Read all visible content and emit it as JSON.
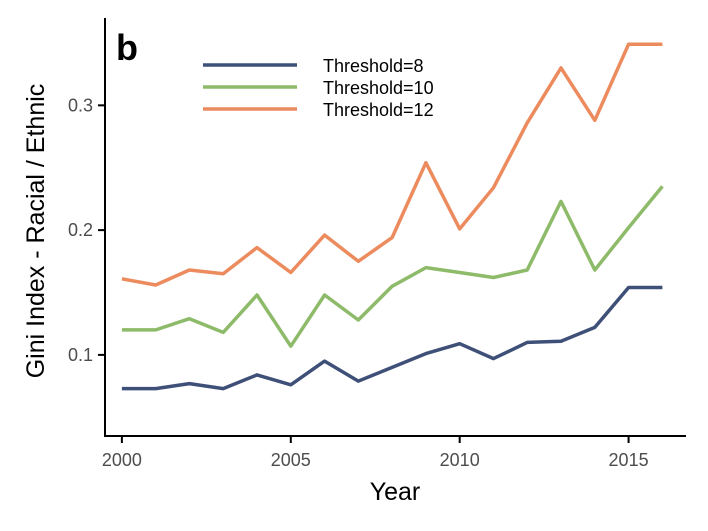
{
  "chart_data": {
    "type": "line",
    "panel_label": "b",
    "xlabel": "Year",
    "ylabel": "Gini Index - Racial / Ethnic",
    "x": [
      2000,
      2001,
      2002,
      2003,
      2004,
      2005,
      2006,
      2007,
      2008,
      2009,
      2010,
      2011,
      2012,
      2013,
      2014,
      2015,
      2016
    ],
    "xlim": [
      1999.5,
      2016.7
    ],
    "ylim": [
      0.035,
      0.37
    ],
    "x_ticks": [
      2000,
      2005,
      2010,
      2015
    ],
    "x_tick_labels": [
      "2000",
      "2005",
      "2010",
      "2015"
    ],
    "y_ticks": [
      0.1,
      0.2,
      0.3
    ],
    "y_tick_labels": [
      "0.1",
      "0.2",
      "0.3"
    ],
    "grid": false,
    "legend_position": "top-center",
    "series": [
      {
        "name": "Threshold=8",
        "color": "#3f5078",
        "values": [
          0.073,
          0.073,
          0.077,
          0.073,
          0.084,
          0.076,
          0.095,
          0.079,
          0.09,
          0.101,
          0.109,
          0.097,
          0.11,
          0.111,
          0.122,
          0.154,
          0.154
        ]
      },
      {
        "name": "Threshold=10",
        "color": "#8dbb69",
        "values": [
          0.12,
          0.12,
          0.129,
          0.118,
          0.148,
          0.107,
          0.148,
          0.128,
          0.155,
          0.17,
          0.166,
          0.162,
          0.168,
          0.223,
          0.168,
          0.202,
          0.235
        ]
      },
      {
        "name": "Threshold=12",
        "color": "#ec8b5e",
        "values": [
          0.161,
          0.156,
          0.168,
          0.165,
          0.186,
          0.166,
          0.196,
          0.175,
          0.194,
          0.254,
          0.201,
          0.234,
          0.286,
          0.33,
          0.288,
          0.349,
          0.349
        ]
      }
    ]
  }
}
